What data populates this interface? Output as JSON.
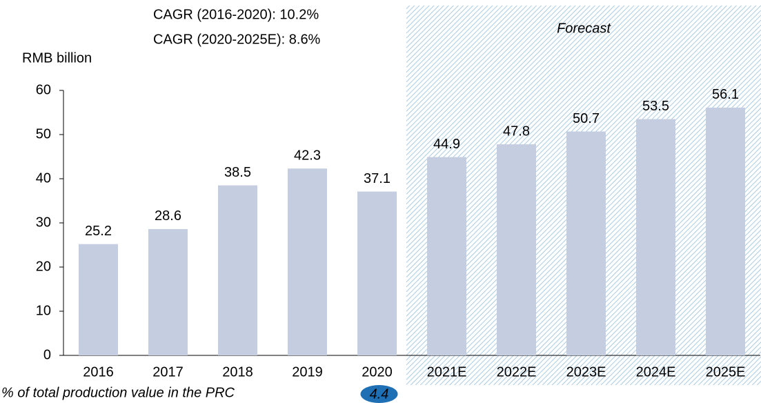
{
  "chart_data": {
    "type": "bar",
    "y_axis_label": "RMB billion",
    "annotations": [
      "CAGR (2016-2020): 10.2%",
      "CAGR (2020-2025E): 8.6%"
    ],
    "forecast_label": "Forecast",
    "categories": [
      "2016",
      "2017",
      "2018",
      "2019",
      "2020",
      "2021E",
      "2022E",
      "2023E",
      "2024E",
      "2025E"
    ],
    "values": [
      25.2,
      28.6,
      38.5,
      42.3,
      37.1,
      44.9,
      47.8,
      50.7,
      53.5,
      56.1
    ],
    "color": "#c5cee0",
    "ylim": [
      0,
      60
    ],
    "yticks": [
      0,
      10,
      20,
      30,
      40,
      50,
      60
    ],
    "grid": false,
    "share": {
      "label": "% of total production value in the PRC",
      "values": [
        null,
        null,
        null,
        null,
        4.4,
        null,
        null,
        null,
        null,
        null
      ],
      "color": "#1f6fb4"
    }
  }
}
